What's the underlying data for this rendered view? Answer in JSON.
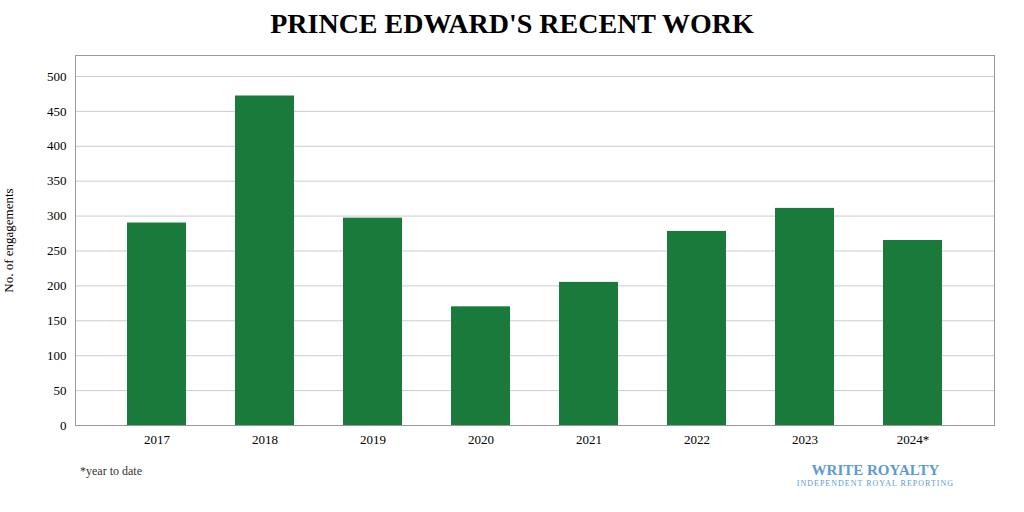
{
  "chart_data": {
    "type": "bar",
    "title": "PRINCE EDWARD'S RECENT WORK",
    "ylabel": "No. of engagements",
    "categories": [
      "2017",
      "2018",
      "2019",
      "2020",
      "2021",
      "2022",
      "2023",
      "2024*"
    ],
    "values": [
      290,
      472,
      297,
      170,
      205,
      278,
      311,
      265
    ],
    "color": "#1a7a3c",
    "ylim": [
      0,
      530
    ],
    "yticks": [
      0,
      50,
      100,
      150,
      200,
      250,
      300,
      350,
      400,
      450,
      500
    ],
    "grid": true,
    "annotations": [
      "*year to date",
      "WRITE ROYALTY",
      "INDEPENDENT ROYAL REPORTING"
    ]
  }
}
